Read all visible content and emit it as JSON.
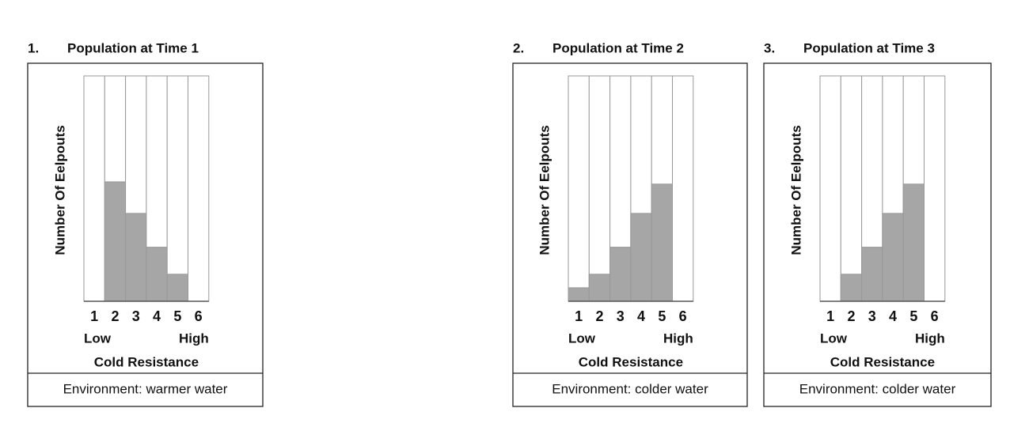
{
  "chart_data": [
    {
      "type": "bar",
      "number": "1.",
      "title": "Population at Time 1",
      "y_label": "Number Of Eelpouts",
      "categories": [
        "1",
        "2",
        "3",
        "4",
        "5",
        "6"
      ],
      "values": [
        0,
        53,
        39,
        24,
        12,
        0
      ],
      "color": "#a6a6a6",
      "ylim": [
        0,
        100
      ],
      "x_low": "Low",
      "x_high": "High",
      "x_label": "Cold Resistance",
      "environment": "Environment: warmer water"
    },
    {
      "type": "bar",
      "number": "2.",
      "title": "Population at Time 2",
      "y_label": "Number Of Eelpouts",
      "categories": [
        "1",
        "2",
        "3",
        "4",
        "5",
        "6"
      ],
      "values": [
        6,
        12,
        24,
        39,
        52,
        0
      ],
      "color": "#a6a6a6",
      "ylim": [
        0,
        100
      ],
      "x_low": "Low",
      "x_high": "High",
      "x_label": "Cold Resistance",
      "environment": "Environment: colder water"
    },
    {
      "type": "bar",
      "number": "3.",
      "title": "Population at Time 3",
      "y_label": "Number Of Eelpouts",
      "categories": [
        "1",
        "2",
        "3",
        "4",
        "5",
        "6"
      ],
      "values": [
        0,
        12,
        24,
        39,
        52,
        0
      ],
      "color": "#a6a6a6",
      "ylim": [
        0,
        100
      ],
      "x_low": "Low",
      "x_high": "High",
      "x_label": "Cold Resistance",
      "environment": "Environment: colder water"
    }
  ]
}
